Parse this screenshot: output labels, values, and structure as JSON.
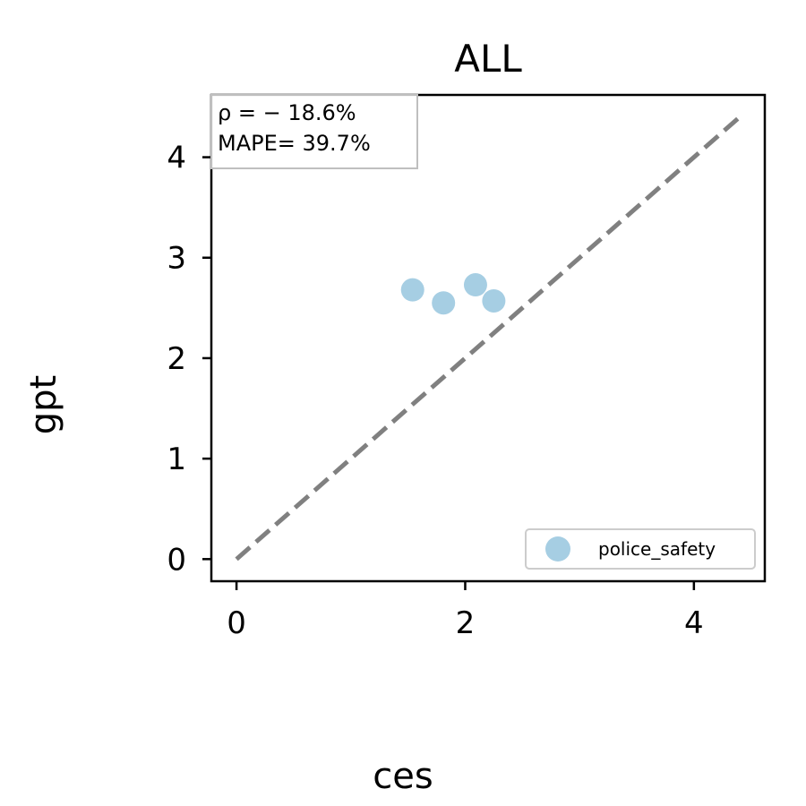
{
  "chart_data": {
    "type": "scatter",
    "title": "ALL",
    "xlabel": "ces",
    "ylabel": "gpt",
    "xlim": [
      -0.22,
      4.62
    ],
    "ylim": [
      -0.22,
      4.62
    ],
    "x_ticks": [
      0,
      2,
      4
    ],
    "y_ticks": [
      0,
      1,
      2,
      3,
      4
    ],
    "grid": false,
    "legend_position": "lower-right",
    "reference_line": {
      "style": "dashed",
      "color": "#808080",
      "from": [
        0,
        0
      ],
      "to": [
        4.4,
        4.4
      ]
    },
    "annotations": [
      "ρ = − 18.6%",
      "MAPE= 39.7%"
    ],
    "series": [
      {
        "name": "police_safety",
        "color": "#a6cee3",
        "points": [
          {
            "x": 1.54,
            "y": 2.68
          },
          {
            "x": 1.81,
            "y": 2.55
          },
          {
            "x": 2.09,
            "y": 2.73
          },
          {
            "x": 2.25,
            "y": 2.57
          }
        ]
      }
    ]
  }
}
